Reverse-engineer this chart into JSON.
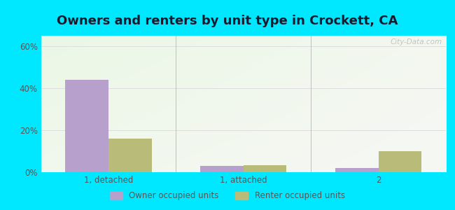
{
  "title": "Owners and renters by unit type in Crockett, CA",
  "categories": [
    "1, detached",
    "1, attached",
    "2"
  ],
  "owner_values": [
    44,
    3,
    2
  ],
  "renter_values": [
    16,
    3.5,
    10
  ],
  "owner_color": "#b8a0cc",
  "renter_color": "#b8bc78",
  "yticks": [
    0,
    20,
    40,
    60
  ],
  "ylim": [
    0,
    65
  ],
  "outer_bg": "#00e8ff",
  "bar_width": 0.32,
  "legend_labels": [
    "Owner occupied units",
    "Renter occupied units"
  ],
  "watermark": "City-Data.com",
  "title_fontsize": 13,
  "tick_fontsize": 8.5,
  "legend_fontsize": 8.5,
  "grid_color": "#dddddd",
  "divider_color": "#aaaaaa",
  "label_color": "#555555"
}
